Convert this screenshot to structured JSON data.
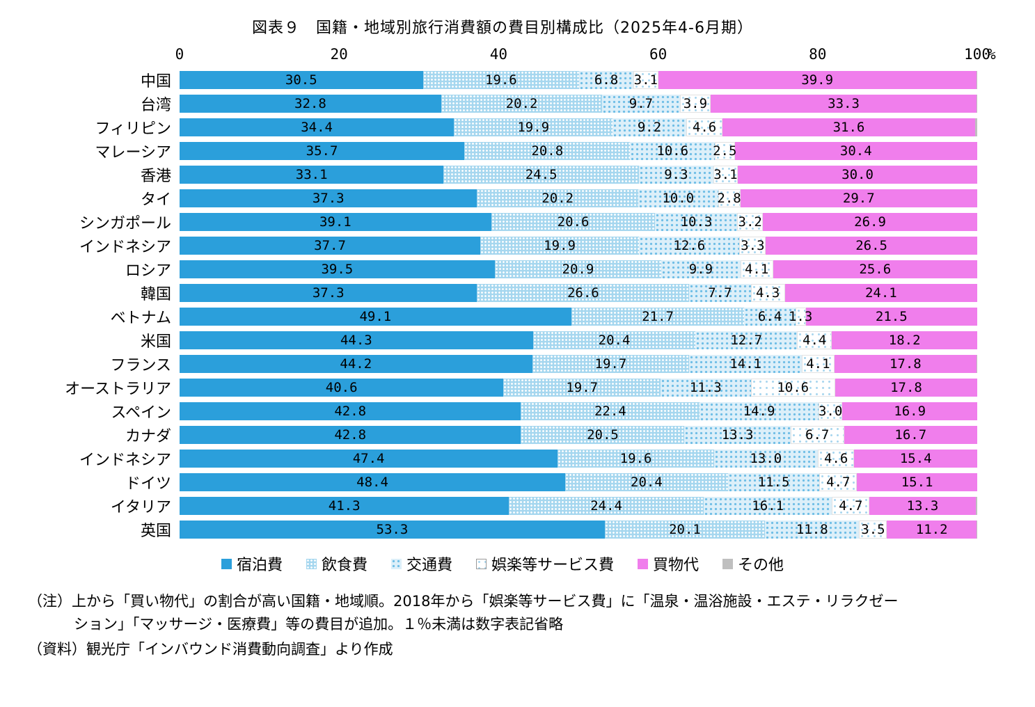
{
  "title": "図表９　国籍・地域別旅行消費額の費目別構成比（2025年4-6月期）",
  "axis": {
    "ticks": [
      0,
      20,
      40,
      60,
      80,
      100
    ],
    "unit": "%"
  },
  "legend": [
    {
      "key": "accommodation",
      "label": "宿泊費"
    },
    {
      "key": "food",
      "label": "飲食費"
    },
    {
      "key": "transport",
      "label": "交通費"
    },
    {
      "key": "entertainment",
      "label": "娯楽等サービス費"
    },
    {
      "key": "shopping",
      "label": "買物代"
    },
    {
      "key": "other",
      "label": "その他"
    }
  ],
  "colors": {
    "accommodation": "#2B9FDB",
    "food": "#A6D7EF",
    "transport": "#DCEFF9",
    "entertainment": "#FFFFFF",
    "shopping": "#F07EEC",
    "other": "#BFBFBF"
  },
  "chart_data": {
    "type": "bar",
    "orientation": "horizontal",
    "stacked": true,
    "unit": "%",
    "xlim": [
      0,
      100
    ],
    "label_threshold": 1,
    "categories": [
      "中国",
      "台湾",
      "フィリピン",
      "マレーシア",
      "香港",
      "タイ",
      "シンガポール",
      "インドネシア",
      "ロシア",
      "韓国",
      "ベトナム",
      "米国",
      "フランス",
      "オーストラリア",
      "スペイン",
      "カナダ",
      "インドネシア",
      "ドイツ",
      "イタリア",
      "英国"
    ],
    "series": [
      {
        "name": "宿泊費",
        "key": "accommodation",
        "values": [
          30.5,
          32.8,
          34.4,
          35.7,
          33.1,
          37.3,
          39.1,
          37.7,
          39.5,
          37.3,
          49.1,
          44.3,
          44.2,
          40.6,
          42.8,
          42.8,
          47.4,
          48.4,
          41.3,
          53.3
        ]
      },
      {
        "name": "飲食費",
        "key": "food",
        "values": [
          19.6,
          20.2,
          19.9,
          20.8,
          24.5,
          20.2,
          20.6,
          19.9,
          20.9,
          26.6,
          21.7,
          20.4,
          19.7,
          19.7,
          22.4,
          20.5,
          19.6,
          20.4,
          24.4,
          20.1
        ]
      },
      {
        "name": "交通費",
        "key": "transport",
        "values": [
          6.8,
          9.7,
          9.2,
          10.6,
          9.3,
          10.0,
          10.3,
          12.6,
          9.9,
          7.7,
          6.4,
          12.7,
          14.1,
          11.3,
          14.9,
          13.3,
          13.0,
          11.5,
          16.1,
          11.8
        ]
      },
      {
        "name": "娯楽等サービス費",
        "key": "entertainment",
        "values": [
          3.1,
          3.9,
          4.6,
          2.5,
          3.1,
          2.8,
          3.2,
          3.3,
          4.1,
          4.3,
          1.3,
          4.4,
          4.1,
          10.6,
          3.0,
          6.7,
          4.6,
          4.7,
          4.7,
          3.5
        ]
      },
      {
        "name": "買物代",
        "key": "shopping",
        "values": [
          39.9,
          33.3,
          31.6,
          30.4,
          30.0,
          29.7,
          26.9,
          26.5,
          25.6,
          24.1,
          21.5,
          18.2,
          17.8,
          17.8,
          16.9,
          16.7,
          15.4,
          15.1,
          13.3,
          11.2
        ]
      },
      {
        "name": "その他",
        "key": "other",
        "values": [
          0.1,
          0.1,
          0.3,
          0,
          0,
          0,
          0,
          0,
          0,
          0,
          0,
          0,
          0.1,
          0,
          0,
          0,
          0,
          0,
          0.2,
          0.1
        ]
      }
    ]
  },
  "notes": {
    "note": "（注）上から「買い物代」の割合が高い国籍・地域順。2018年から「娯楽等サービス費」に「温泉・温浴施設・エステ・リラクゼーション」「マッサージ・医療費」等の費目が追加。１％未満は数字表記省略",
    "source": "（資料）観光庁「インバウンド消費動向調査」より作成"
  }
}
